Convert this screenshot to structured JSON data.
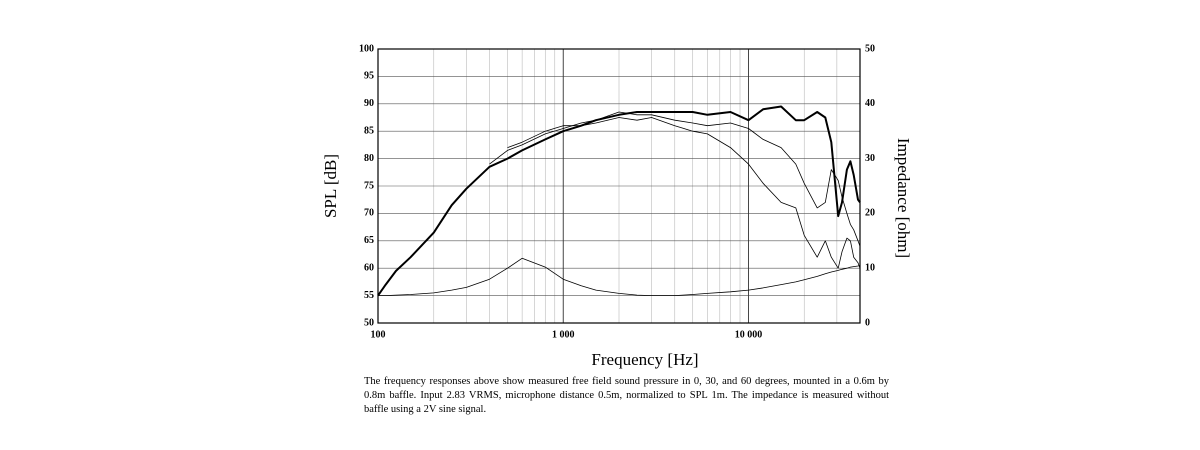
{
  "chart_data": {
    "type": "line",
    "ylabel": "SPL [dB]",
    "y2label": "Impedance [ohm]",
    "xlabel": "Frequency [Hz]",
    "caption": "The frequency responses above show measured free field sound pressure in 0, 30, and 60 degrees, mounted in a 0.6m by 0.8m baffle. Input 2.83 VRMS, microphone distance 0.5m, normalized to SPL 1m. The impedance is measured without baffle using a 2V sine signal.",
    "xscale": "log",
    "grid": true,
    "xlim": [
      100,
      40000
    ],
    "xticks": [
      100,
      {
        "value": 1000,
        "label": "1 000"
      },
      {
        "value": 10000,
        "label": "10 000"
      }
    ],
    "xminorticks": [
      200,
      300,
      400,
      500,
      600,
      700,
      800,
      900,
      2000,
      3000,
      4000,
      5000,
      6000,
      7000,
      8000,
      9000,
      20000,
      30000
    ],
    "ylim": [
      50,
      100
    ],
    "yticks": [
      50,
      55,
      60,
      65,
      70,
      75,
      80,
      85,
      90,
      95,
      100
    ],
    "y2lim": [
      0,
      50
    ],
    "y2ticks": [
      0,
      10,
      20,
      30,
      40,
      50
    ],
    "x": [
      100,
      110,
      125,
      150,
      200,
      250,
      300,
      400,
      500,
      600,
      800,
      1000,
      1250,
      1500,
      2000,
      2500,
      3000,
      4000,
      5000,
      6000,
      8000,
      10000,
      12000,
      15000,
      18000,
      20000,
      23500,
      26000,
      28000,
      30500,
      32000,
      34000,
      35500,
      37000,
      39000,
      40000
    ],
    "series": [
      {
        "color": "#000000",
        "width": 2,
        "values": [
          55,
          57,
          59.5,
          62,
          66.5,
          71.5,
          74.5,
          78.5,
          80,
          81.5,
          83.5,
          85,
          86,
          87,
          88,
          88.5,
          88.5,
          88.5,
          88.5,
          88,
          88.5,
          87,
          89,
          89.5,
          87,
          87,
          88.5,
          87.5,
          83,
          69.5,
          72,
          78,
          79.5,
          77,
          72.5,
          72
        ]
      },
      {
        "color": "#000000",
        "width": 0.8,
        "values": [
          null,
          null,
          null,
          null,
          null,
          null,
          null,
          79,
          81.5,
          82.5,
          84.5,
          85.5,
          86.5,
          87,
          88.5,
          88,
          88,
          87,
          86.5,
          86,
          86.5,
          85.5,
          83.5,
          82,
          79,
          75.5,
          71,
          72,
          78,
          76,
          73,
          70,
          68,
          67,
          65,
          64
        ]
      },
      {
        "color": "#000000",
        "width": 0.8,
        "values": [
          null,
          null,
          null,
          null,
          null,
          null,
          null,
          null,
          82,
          83,
          85,
          86,
          86,
          86.5,
          87.5,
          87,
          87.5,
          86,
          85,
          84.5,
          82,
          79,
          75.5,
          72,
          71,
          66,
          62,
          65,
          62,
          60,
          63,
          65.5,
          65,
          62,
          61,
          60
        ]
      },
      {
        "color": "#000000",
        "width": 0.8,
        "axis": "y2",
        "values": [
          5,
          5,
          5.1,
          5.2,
          5.5,
          6,
          6.5,
          8,
          10,
          11.8,
          10.2,
          8,
          6.8,
          6,
          5.4,
          5.1,
          5,
          5,
          5.2,
          5.4,
          5.7,
          6,
          6.4,
          7,
          7.5,
          7.9,
          8.5,
          9,
          9.3,
          9.6,
          9.8,
          10,
          10.2,
          10.3,
          10.4,
          10.5
        ]
      }
    ]
  }
}
